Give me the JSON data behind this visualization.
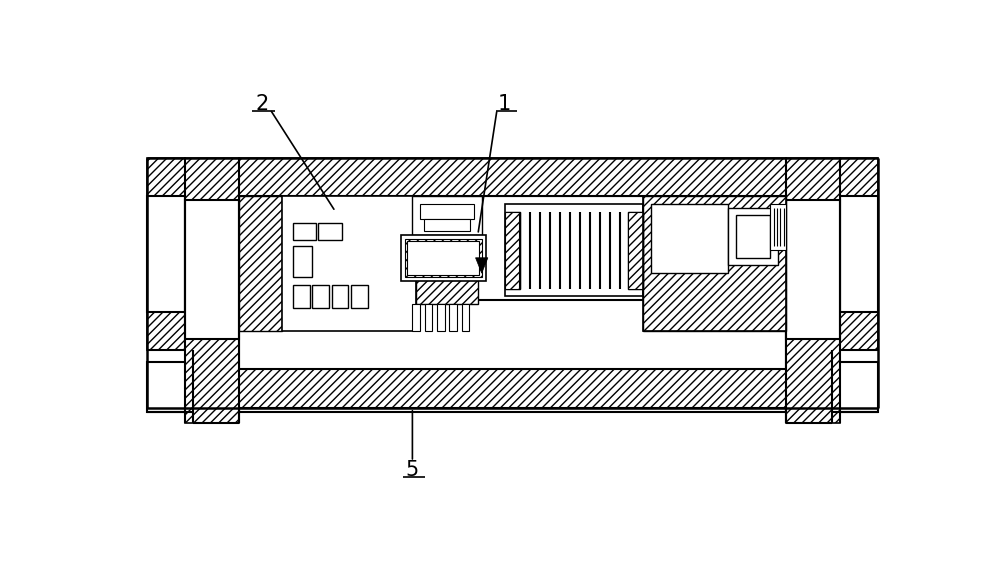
{
  "bg_color": "#ffffff",
  "line_color": "#000000",
  "fig_width": 10.0,
  "fig_height": 5.76,
  "label_1": "1",
  "label_2": "2",
  "label_5": "5"
}
